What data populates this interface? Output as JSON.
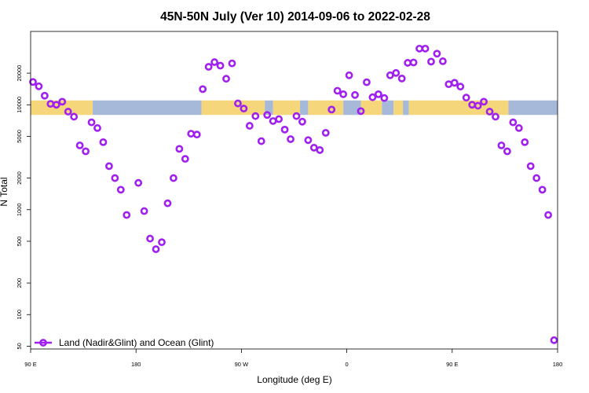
{
  "chart_data": {
    "type": "scatter",
    "title": "45N-50N July (Ver 10)   2014-09-06 to 2022-02-28",
    "xlabel": "Longitude (deg E)",
    "ylabel": "N Total",
    "y_scale": "log",
    "ylim": [
      47,
      50000
    ],
    "xlim": [
      90,
      540
    ],
    "x_ticks": [
      {
        "value": 90,
        "label": "90 E"
      },
      {
        "value": 180,
        "label": "180"
      },
      {
        "value": 270,
        "label": "90 W"
      },
      {
        "value": 360,
        "label": "0"
      },
      {
        "value": 450,
        "label": "90 E"
      },
      {
        "value": 540,
        "label": "180"
      }
    ],
    "y_ticks": [
      {
        "value": 50,
        "label": "50"
      },
      {
        "value": 100,
        "label": "100"
      },
      {
        "value": 200,
        "label": "200"
      },
      {
        "value": 500,
        "label": "500"
      },
      {
        "value": 1000,
        "label": "1000"
      },
      {
        "value": 2000,
        "label": "2000"
      },
      {
        "value": 5000,
        "label": "5000"
      },
      {
        "value": 10000,
        "label": "10000"
      },
      {
        "value": 20000,
        "label": "20000"
      }
    ],
    "land_ocean_band": {
      "y_range": [
        8000,
        11000
      ],
      "colors": {
        "land": "#f5d67a",
        "ocean": "#a6b9d8"
      },
      "segments": [
        {
          "from": 90,
          "to": 143,
          "kind": "land"
        },
        {
          "from": 143,
          "to": 236,
          "kind": "ocean"
        },
        {
          "from": 236,
          "to": 290,
          "kind": "land"
        },
        {
          "from": 290,
          "to": 297,
          "kind": "ocean"
        },
        {
          "from": 297,
          "to": 320,
          "kind": "land"
        },
        {
          "from": 320,
          "to": 327,
          "kind": "ocean"
        },
        {
          "from": 327,
          "to": 357,
          "kind": "land"
        },
        {
          "from": 357,
          "to": 372,
          "kind": "ocean"
        },
        {
          "from": 372,
          "to": 390,
          "kind": "land"
        },
        {
          "from": 390,
          "to": 400,
          "kind": "ocean"
        },
        {
          "from": 400,
          "to": 408,
          "kind": "land"
        },
        {
          "from": 408,
          "to": 413,
          "kind": "ocean"
        },
        {
          "from": 413,
          "to": 498,
          "kind": "land"
        },
        {
          "from": 498,
          "to": 540,
          "kind": "ocean"
        }
      ]
    },
    "series": [
      {
        "name": "Land (Nadir&Glint) and Ocean (Glint)",
        "color": "#a020f0",
        "points": [
          [
            92,
            16500
          ],
          [
            97,
            15000
          ],
          [
            102,
            12200
          ],
          [
            107,
            10200
          ],
          [
            112,
            10000
          ],
          [
            117,
            10700
          ],
          [
            122,
            8600
          ],
          [
            127,
            7700
          ],
          [
            132,
            4100
          ],
          [
            137,
            3600
          ],
          [
            142,
            6800
          ],
          [
            147,
            6000
          ],
          [
            152,
            4400
          ],
          [
            157,
            2600
          ],
          [
            162,
            2000
          ],
          [
            167,
            1550
          ],
          [
            172,
            890
          ],
          [
            182,
            1800
          ],
          [
            187,
            970
          ],
          [
            192,
            530
          ],
          [
            197,
            420
          ],
          [
            202,
            490
          ],
          [
            207,
            1150
          ],
          [
            212,
            2000
          ],
          [
            217,
            3800
          ],
          [
            222,
            3050
          ],
          [
            227,
            5300
          ],
          [
            232,
            5200
          ],
          [
            237,
            14100
          ],
          [
            242,
            23000
          ],
          [
            247,
            25500
          ],
          [
            252,
            23600
          ],
          [
            257,
            17700
          ],
          [
            262,
            24800
          ],
          [
            267,
            10300
          ],
          [
            272,
            9200
          ],
          [
            277,
            6300
          ],
          [
            282,
            7800
          ],
          [
            287,
            4500
          ],
          [
            292,
            8000
          ],
          [
            297,
            7000
          ],
          [
            302,
            7300
          ],
          [
            307,
            5800
          ],
          [
            312,
            4700
          ],
          [
            317,
            7800
          ],
          [
            322,
            6900
          ],
          [
            327,
            4600
          ],
          [
            332,
            3900
          ],
          [
            337,
            3700
          ],
          [
            342,
            5400
          ],
          [
            347,
            9000
          ],
          [
            352,
            13600
          ],
          [
            357,
            12600
          ],
          [
            362,
            19100
          ],
          [
            367,
            12400
          ],
          [
            372,
            8700
          ],
          [
            377,
            16400
          ],
          [
            382,
            11800
          ],
          [
            387,
            12600
          ],
          [
            392,
            11600
          ],
          [
            397,
            19100
          ],
          [
            402,
            20100
          ],
          [
            407,
            17800
          ],
          [
            412,
            25100
          ],
          [
            417,
            25300
          ],
          [
            422,
            34300
          ],
          [
            427,
            34300
          ],
          [
            432,
            25800
          ],
          [
            437,
            30700
          ],
          [
            442,
            26000
          ],
          [
            447,
            15700
          ],
          [
            452,
            16200
          ],
          [
            457,
            14900
          ],
          [
            462,
            11700
          ],
          [
            467,
            10000
          ],
          [
            472,
            9800
          ],
          [
            477,
            10700
          ],
          [
            482,
            8600
          ],
          [
            487,
            7700
          ],
          [
            492,
            4100
          ],
          [
            497,
            3600
          ],
          [
            502,
            6800
          ],
          [
            507,
            6000
          ],
          [
            512,
            4400
          ],
          [
            517,
            2600
          ],
          [
            522,
            2000
          ],
          [
            527,
            1550
          ],
          [
            532,
            890
          ],
          [
            537,
            57
          ]
        ]
      }
    ],
    "legend": {
      "placement": "bottom-left"
    }
  }
}
